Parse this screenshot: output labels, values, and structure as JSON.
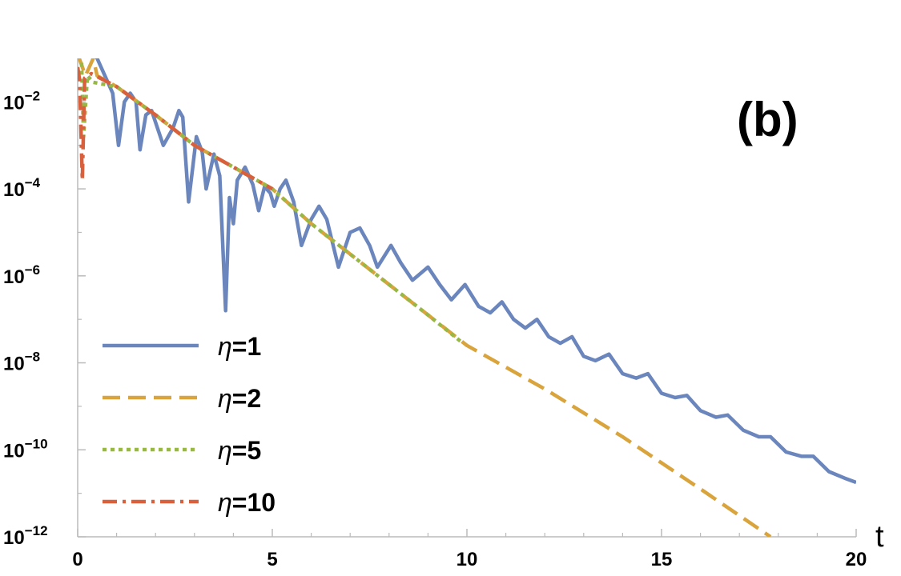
{
  "chart_data": {
    "type": "line",
    "panel_label": "(b)",
    "xlabel": "t",
    "ylabel": "",
    "xlim": [
      0,
      20
    ],
    "ylim_log10": [
      -12,
      -1
    ],
    "y_scale": "log",
    "x_ticks": [
      0,
      5,
      10,
      15,
      20
    ],
    "x_tick_labels": [
      "0",
      "5",
      "10",
      "15",
      "20"
    ],
    "y_ticks": [
      -12,
      -10,
      -8,
      -6,
      -4,
      -2
    ],
    "y_tick_labels": [
      {
        "base": "10",
        "exp": "−12"
      },
      {
        "base": "10",
        "exp": "−10"
      },
      {
        "base": "10",
        "exp": "−8"
      },
      {
        "base": "10",
        "exp": "−6"
      },
      {
        "base": "10",
        "exp": "−4"
      },
      {
        "base": "10",
        "exp": "−2"
      }
    ],
    "legend_position": "bottom-left",
    "series": [
      {
        "name": "η=1",
        "legend_prefix": "η",
        "legend_value": "=1",
        "color": "#6b86bd",
        "style": "solid",
        "points": [
          [
            0.0,
            -0.9
          ],
          [
            0.25,
            -0.7
          ],
          [
            0.45,
            -0.9
          ],
          [
            0.7,
            -1.4
          ],
          [
            0.9,
            -1.8
          ],
          [
            1.05,
            -3.0
          ],
          [
            1.2,
            -2.0
          ],
          [
            1.35,
            -1.8
          ],
          [
            1.5,
            -2.0
          ],
          [
            1.6,
            -3.1
          ],
          [
            1.75,
            -2.3
          ],
          [
            1.9,
            -2.2
          ],
          [
            2.05,
            -2.6
          ],
          [
            2.2,
            -3.0
          ],
          [
            2.45,
            -2.6
          ],
          [
            2.6,
            -2.2
          ],
          [
            2.7,
            -2.35
          ],
          [
            2.85,
            -4.3
          ],
          [
            3.05,
            -2.8
          ],
          [
            3.2,
            -3.15
          ],
          [
            3.3,
            -4.0
          ],
          [
            3.5,
            -3.2
          ],
          [
            3.65,
            -3.7
          ],
          [
            3.8,
            -6.8
          ],
          [
            3.9,
            -4.2
          ],
          [
            4.0,
            -4.8
          ],
          [
            4.1,
            -3.8
          ],
          [
            4.3,
            -3.5
          ],
          [
            4.5,
            -3.9
          ],
          [
            4.65,
            -4.5
          ],
          [
            4.8,
            -3.95
          ],
          [
            4.95,
            -4.1
          ],
          [
            5.05,
            -4.4
          ],
          [
            5.2,
            -4.0
          ],
          [
            5.35,
            -3.8
          ],
          [
            5.55,
            -4.3
          ],
          [
            5.75,
            -5.3
          ],
          [
            6.0,
            -4.7
          ],
          [
            6.2,
            -4.4
          ],
          [
            6.4,
            -4.7
          ],
          [
            6.7,
            -5.8
          ],
          [
            7.0,
            -5.0
          ],
          [
            7.25,
            -4.9
          ],
          [
            7.5,
            -5.3
          ],
          [
            7.7,
            -5.8
          ],
          [
            8.05,
            -5.3
          ],
          [
            8.3,
            -5.7
          ],
          [
            8.6,
            -6.1
          ],
          [
            9.0,
            -5.8
          ],
          [
            9.3,
            -6.2
          ],
          [
            9.6,
            -6.55
          ],
          [
            9.95,
            -6.2
          ],
          [
            10.3,
            -6.7
          ],
          [
            10.6,
            -6.85
          ],
          [
            10.9,
            -6.6
          ],
          [
            11.2,
            -7.0
          ],
          [
            11.5,
            -7.2
          ],
          [
            11.8,
            -7.0
          ],
          [
            12.1,
            -7.4
          ],
          [
            12.4,
            -7.55
          ],
          [
            12.7,
            -7.4
          ],
          [
            13.0,
            -7.85
          ],
          [
            13.3,
            -7.95
          ],
          [
            13.65,
            -7.8
          ],
          [
            14.0,
            -8.25
          ],
          [
            14.35,
            -8.35
          ],
          [
            14.65,
            -8.25
          ],
          [
            15.0,
            -8.7
          ],
          [
            15.35,
            -8.8
          ],
          [
            15.65,
            -8.75
          ],
          [
            16.0,
            -9.1
          ],
          [
            16.4,
            -9.25
          ],
          [
            16.7,
            -9.2
          ],
          [
            17.1,
            -9.55
          ],
          [
            17.5,
            -9.7
          ],
          [
            17.8,
            -9.7
          ],
          [
            18.2,
            -10.05
          ],
          [
            18.6,
            -10.15
          ],
          [
            18.9,
            -10.15
          ],
          [
            19.3,
            -10.5
          ],
          [
            19.7,
            -10.65
          ],
          [
            20.0,
            -10.75
          ]
        ]
      },
      {
        "name": "η=2",
        "legend_prefix": "η",
        "legend_value": "=2",
        "color": "#d9a43c",
        "style": "dashed",
        "points": [
          [
            0.0,
            -0.9
          ],
          [
            0.2,
            -1.4
          ],
          [
            0.4,
            -1.0
          ],
          [
            0.5,
            -1.4
          ],
          [
            1.0,
            -1.65
          ],
          [
            2.0,
            -2.3
          ],
          [
            3.0,
            -3.0
          ],
          [
            4.0,
            -3.5
          ],
          [
            5.0,
            -4.0
          ],
          [
            6.0,
            -4.8
          ],
          [
            7.0,
            -5.5
          ],
          [
            8.0,
            -6.2
          ],
          [
            9.0,
            -6.9
          ],
          [
            10.0,
            -7.6
          ],
          [
            12.0,
            -8.6
          ],
          [
            14.0,
            -9.7
          ],
          [
            16.0,
            -10.9
          ],
          [
            17.8,
            -12.0
          ]
        ]
      },
      {
        "name": "η=5",
        "legend_prefix": "η",
        "legend_value": "=5",
        "color": "#98b845",
        "style": "dotted",
        "points": [
          [
            0.1,
            -1.1
          ],
          [
            0.15,
            -2.8
          ],
          [
            0.25,
            -1.4
          ],
          [
            0.4,
            -1.55
          ],
          [
            1.0,
            -1.65
          ],
          [
            2.0,
            -2.3
          ],
          [
            3.0,
            -3.0
          ],
          [
            4.0,
            -3.5
          ],
          [
            5.0,
            -4.0
          ],
          [
            6.0,
            -4.8
          ],
          [
            7.0,
            -5.5
          ],
          [
            8.0,
            -6.2
          ],
          [
            9.0,
            -6.9
          ],
          [
            9.9,
            -7.55
          ]
        ]
      },
      {
        "name": "η=10",
        "legend_prefix": "η",
        "legend_value": "=10",
        "color": "#d8603c",
        "style": "dashdot",
        "points": [
          [
            0.0,
            -1.2
          ],
          [
            0.05,
            -1.5
          ],
          [
            0.12,
            -3.8
          ],
          [
            0.18,
            -1.45
          ],
          [
            0.35,
            -1.35
          ],
          [
            1.0,
            -1.65
          ],
          [
            2.0,
            -2.3
          ],
          [
            3.0,
            -3.0
          ],
          [
            4.0,
            -3.5
          ],
          [
            5.0,
            -4.0
          ]
        ]
      }
    ]
  }
}
